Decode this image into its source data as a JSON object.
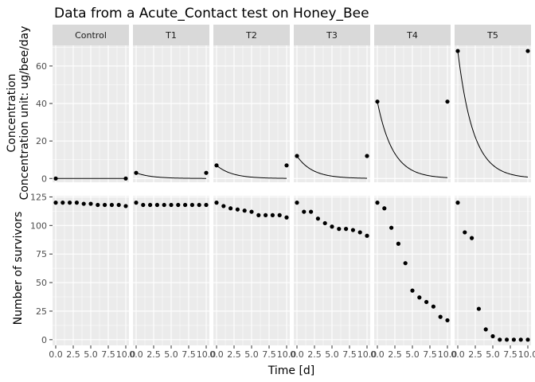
{
  "colors": {
    "panel_background": "#ebebeb",
    "grid_major": "#ffffff",
    "strip_background": "#d9d9d9",
    "point": "#000000",
    "line": "#000000"
  },
  "chart_data": {
    "type": "scatter",
    "title": "Data from a Acute_Contact test on Honey_Bee",
    "xlabel": "Time [d]",
    "facets": [
      "Control",
      "T1",
      "T2",
      "T3",
      "T4",
      "T5"
    ],
    "grid": true,
    "x_ticks": [
      "0.0",
      "2.5",
      "5.0",
      "7.5",
      "10.0"
    ],
    "xlim": [
      0,
      10
    ],
    "rows": [
      {
        "ylabel_lines": [
          "Concentration",
          "Concentration unit: ug/bee/day"
        ],
        "ylim": [
          -2,
          71
        ],
        "y_ticks": [
          0,
          20,
          40,
          60
        ],
        "points": {
          "Control": [
            [
              0,
              0
            ],
            [
              10,
              0
            ]
          ],
          "T1": [
            [
              0,
              3
            ],
            [
              10,
              3
            ]
          ],
          "T2": [
            [
              0,
              7
            ],
            [
              10,
              7
            ]
          ],
          "T3": [
            [
              0,
              12
            ],
            [
              10,
              12
            ]
          ],
          "T4": [
            [
              0,
              41
            ],
            [
              10,
              41
            ]
          ],
          "T5": [
            [
              0,
              68
            ],
            [
              10,
              68
            ]
          ]
        },
        "curves": {
          "Control": {
            "c0": 0,
            "k": 0.45
          },
          "T1": {
            "c0": 3,
            "k": 0.45
          },
          "T2": {
            "c0": 7,
            "k": 0.45
          },
          "T3": {
            "c0": 12,
            "k": 0.45
          },
          "T4": {
            "c0": 41,
            "k": 0.45
          },
          "T5": {
            "c0": 68,
            "k": 0.45
          }
        }
      },
      {
        "ylabel_lines": [
          "Number of survivors"
        ],
        "ylim": [
          -5,
          126
        ],
        "y_ticks": [
          0,
          25,
          50,
          75,
          100,
          125
        ],
        "points": {
          "Control": [
            [
              0,
              120
            ],
            [
              1,
              120
            ],
            [
              2,
              120
            ],
            [
              3,
              120
            ],
            [
              4,
              119
            ],
            [
              5,
              119
            ],
            [
              6,
              118
            ],
            [
              7,
              118
            ],
            [
              8,
              118
            ],
            [
              9,
              118
            ],
            [
              10,
              117
            ]
          ],
          "T1": [
            [
              0,
              120
            ],
            [
              1,
              118
            ],
            [
              2,
              118
            ],
            [
              3,
              118
            ],
            [
              4,
              118
            ],
            [
              5,
              118
            ],
            [
              6,
              118
            ],
            [
              7,
              118
            ],
            [
              8,
              118
            ],
            [
              9,
              118
            ],
            [
              10,
              118
            ]
          ],
          "T2": [
            [
              0,
              120
            ],
            [
              1,
              117
            ],
            [
              2,
              115
            ],
            [
              3,
              114
            ],
            [
              4,
              113
            ],
            [
              5,
              112
            ],
            [
              6,
              109
            ],
            [
              7,
              109
            ],
            [
              8,
              109
            ],
            [
              9,
              109
            ],
            [
              10,
              107
            ]
          ],
          "T3": [
            [
              0,
              120
            ],
            [
              1,
              112
            ],
            [
              2,
              112
            ],
            [
              3,
              106
            ],
            [
              4,
              102
            ],
            [
              5,
              99
            ],
            [
              6,
              97
            ],
            [
              7,
              97
            ],
            [
              8,
              96
            ],
            [
              9,
              94
            ],
            [
              10,
              91
            ]
          ],
          "T4": [
            [
              0,
              120
            ],
            [
              1,
              115
            ],
            [
              2,
              98
            ],
            [
              3,
              84
            ],
            [
              4,
              67
            ],
            [
              5,
              43
            ],
            [
              6,
              37
            ],
            [
              7,
              33
            ],
            [
              8,
              29
            ],
            [
              9,
              20
            ],
            [
              10,
              17
            ]
          ],
          "T5": [
            [
              0,
              120
            ],
            [
              1,
              94
            ],
            [
              2,
              89
            ],
            [
              3,
              27
            ],
            [
              4,
              9
            ],
            [
              5,
              3
            ],
            [
              6,
              0
            ],
            [
              7,
              0
            ],
            [
              8,
              0
            ],
            [
              9,
              0
            ],
            [
              10,
              0
            ]
          ]
        }
      }
    ]
  }
}
